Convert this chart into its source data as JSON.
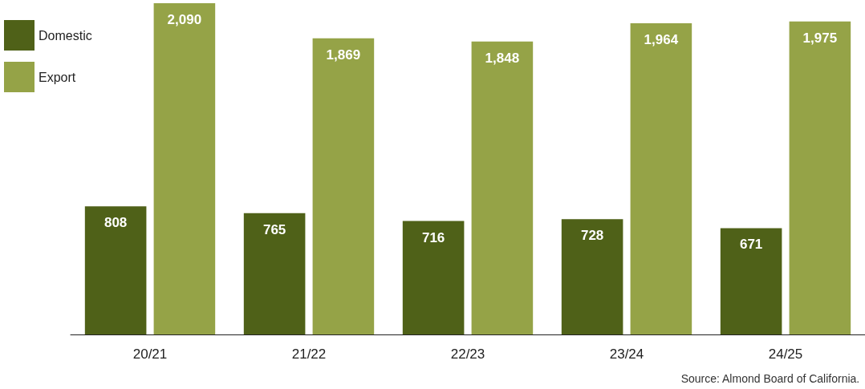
{
  "chart_data": {
    "type": "bar",
    "categories": [
      "20/21",
      "21/22",
      "22/23",
      "23/24",
      "24/25"
    ],
    "series": [
      {
        "name": "Domestic",
        "color": "#4f6118",
        "values": [
          808,
          765,
          716,
          728,
          671
        ],
        "value_labels": [
          "808",
          "765",
          "716",
          "728",
          "671"
        ]
      },
      {
        "name": "Export",
        "color": "#95a347",
        "values": [
          2090,
          1869,
          1848,
          1964,
          1975
        ],
        "value_labels": [
          "2,090",
          "1,869",
          "1,848",
          "1,964",
          "1,975"
        ]
      }
    ],
    "legend": "top left",
    "grid": false,
    "annotations": [
      "Source: Almond Board of California."
    ]
  }
}
